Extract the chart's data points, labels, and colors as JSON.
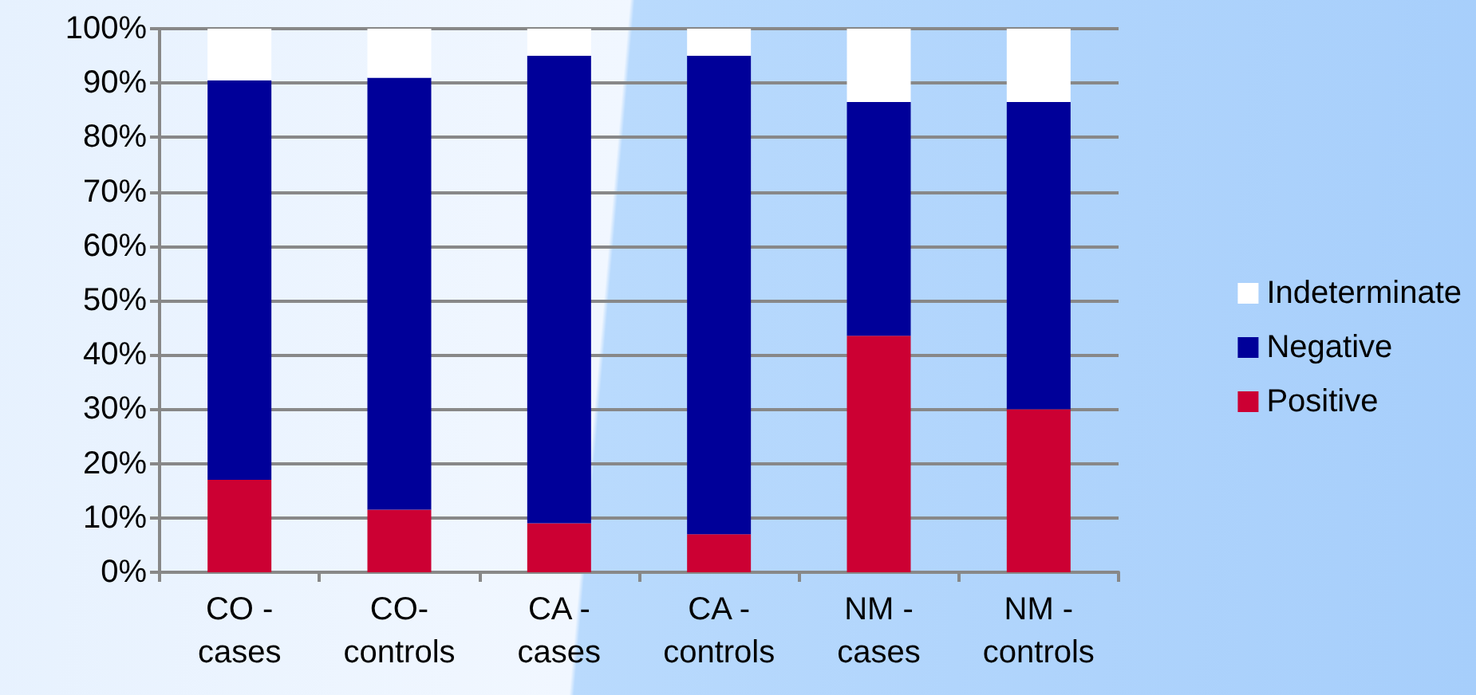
{
  "chart_data": {
    "type": "bar",
    "stacked": true,
    "categories": [
      "CO - cases",
      "CO- controls",
      "CA - cases",
      "CA - controls",
      "NM - cases",
      "NM - controls"
    ],
    "series": [
      {
        "name": "Positive",
        "color": "#cc0033",
        "values": [
          17,
          11.5,
          9,
          7,
          43.5,
          30
        ]
      },
      {
        "name": "Negative",
        "color": "#000099",
        "values": [
          73.5,
          79.5,
          86,
          88,
          43,
          56.5
        ]
      },
      {
        "name": "Indeterminate",
        "color": "#ffffff",
        "values": [
          9.5,
          9,
          5,
          5,
          13.5,
          13.5
        ]
      }
    ],
    "ylim": [
      0,
      100
    ],
    "yticks": [
      {
        "value": 0,
        "label": "0%"
      },
      {
        "value": 10,
        "label": "10%"
      },
      {
        "value": 20,
        "label": "20%"
      },
      {
        "value": 30,
        "label": "30%"
      },
      {
        "value": 40,
        "label": "40%"
      },
      {
        "value": 50,
        "label": "50%"
      },
      {
        "value": 60,
        "label": "60%"
      },
      {
        "value": 70,
        "label": "70%"
      },
      {
        "value": 80,
        "label": "80%"
      },
      {
        "value": 90,
        "label": "90%"
      },
      {
        "value": 100,
        "label": "100%"
      }
    ],
    "grid": "y",
    "legend": "right"
  }
}
